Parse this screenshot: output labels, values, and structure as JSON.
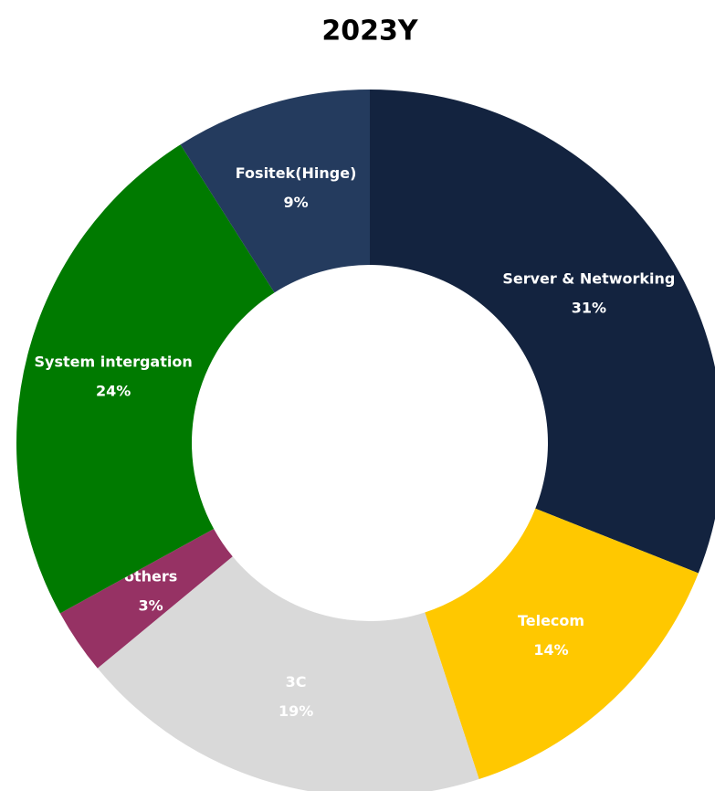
{
  "chart_data": {
    "type": "donut",
    "title": "2023Y",
    "categories": [
      "Server & Networking",
      "Telecom",
      "3C",
      "others",
      "System intergation",
      "Fositek(Hinge)"
    ],
    "values": [
      31,
      14,
      19,
      3,
      24,
      9
    ],
    "value_labels": [
      "31%",
      "14%",
      "19%",
      "3%",
      "24%",
      "9%"
    ],
    "colors": [
      "#13233f",
      "#ffc800",
      "#d9d9d9",
      "#963264",
      "#007a00",
      "#243b5e"
    ]
  }
}
